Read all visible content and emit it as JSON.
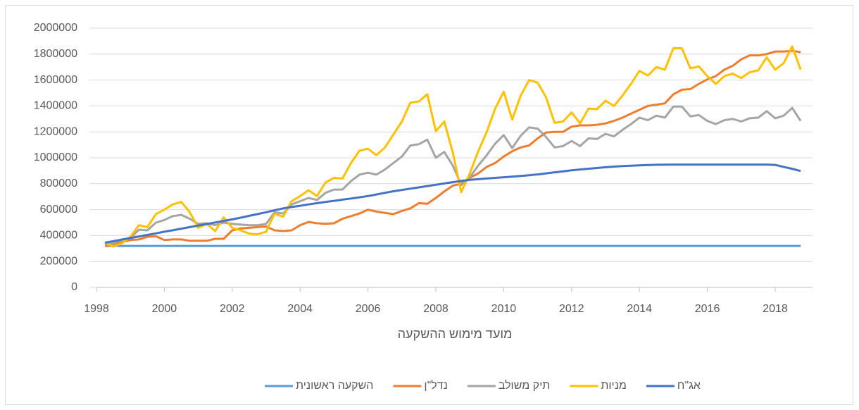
{
  "chart_data": {
    "type": "line",
    "x_label": "מועד מימוש ההשקעה",
    "x": [
      1998.25,
      1998.5,
      1998.75,
      1999,
      1999.25,
      1999.5,
      1999.75,
      2000,
      2000.25,
      2000.5,
      2000.75,
      2001,
      2001.25,
      2001.5,
      2001.75,
      2002,
      2002.25,
      2002.5,
      2002.75,
      2003,
      2003.25,
      2003.5,
      2003.75,
      2004,
      2004.25,
      2004.5,
      2004.75,
      2005,
      2005.25,
      2005.5,
      2005.75,
      2006,
      2006.25,
      2006.5,
      2006.75,
      2007,
      2007.25,
      2007.5,
      2007.75,
      2008,
      2008.25,
      2008.5,
      2008.75,
      2009,
      2009.25,
      2009.5,
      2009.75,
      2010,
      2010.25,
      2010.5,
      2010.75,
      2011,
      2011.25,
      2011.5,
      2011.75,
      2012,
      2012.25,
      2012.5,
      2012.75,
      2013,
      2013.25,
      2013.5,
      2013.75,
      2014,
      2014.25,
      2014.5,
      2014.75,
      2015,
      2015.25,
      2015.5,
      2015.75,
      2016,
      2016.25,
      2016.5,
      2016.75,
      2017,
      2017.25,
      2017.5,
      2017.75,
      2018,
      2018.25,
      2018.5,
      2018.75
    ],
    "series": [
      {
        "name": "השקעה ראשונית",
        "color": "#5b9bd5",
        "values": [
          320000,
          320000,
          320000,
          320000,
          320000,
          320000,
          320000,
          320000,
          320000,
          320000,
          320000,
          320000,
          320000,
          320000,
          320000,
          320000,
          320000,
          320000,
          320000,
          320000,
          320000,
          320000,
          320000,
          320000,
          320000,
          320000,
          320000,
          320000,
          320000,
          320000,
          320000,
          320000,
          320000,
          320000,
          320000,
          320000,
          320000,
          320000,
          320000,
          320000,
          320000,
          320000,
          320000,
          320000,
          320000,
          320000,
          320000,
          320000,
          320000,
          320000,
          320000,
          320000,
          320000,
          320000,
          320000,
          320000,
          320000,
          320000,
          320000,
          320000,
          320000,
          320000,
          320000,
          320000,
          320000,
          320000,
          320000,
          320000,
          320000,
          320000,
          320000,
          320000,
          320000,
          320000,
          320000,
          320000,
          320000,
          320000,
          320000,
          320000,
          320000,
          320000,
          320000
        ]
      },
      {
        "name": "נדל\"ן",
        "color": "#ed7d31",
        "values": [
          320000,
          330000,
          350000,
          365000,
          370000,
          390000,
          395000,
          365000,
          370000,
          370000,
          360000,
          360000,
          360000,
          375000,
          375000,
          440000,
          455000,
          460000,
          465000,
          470000,
          440000,
          435000,
          440000,
          480000,
          505000,
          495000,
          490000,
          495000,
          530000,
          550000,
          570000,
          600000,
          585000,
          575000,
          565000,
          590000,
          610000,
          650000,
          645000,
          690000,
          740000,
          785000,
          800000,
          845000,
          880000,
          930000,
          960000,
          1010000,
          1050000,
          1080000,
          1095000,
          1150000,
          1195000,
          1200000,
          1200000,
          1240000,
          1250000,
          1250000,
          1255000,
          1265000,
          1285000,
          1310000,
          1340000,
          1370000,
          1400000,
          1410000,
          1420000,
          1490000,
          1525000,
          1530000,
          1570000,
          1605000,
          1630000,
          1680000,
          1710000,
          1760000,
          1790000,
          1790000,
          1800000,
          1820000,
          1820000,
          1825000,
          1815000
        ]
      },
      {
        "name": "תיק משולב",
        "color": "#a5a5a5",
        "values": [
          330000,
          340000,
          370000,
          380000,
          445000,
          440000,
          500000,
          520000,
          550000,
          560000,
          530000,
          490000,
          495000,
          480000,
          500000,
          490000,
          485000,
          480000,
          480000,
          490000,
          580000,
          570000,
          640000,
          665000,
          690000,
          675000,
          730000,
          755000,
          755000,
          820000,
          870000,
          885000,
          870000,
          910000,
          960000,
          1010000,
          1095000,
          1105000,
          1140000,
          1000000,
          1045000,
          940000,
          790000,
          850000,
          940000,
          1020000,
          1110000,
          1175000,
          1075000,
          1170000,
          1235000,
          1225000,
          1160000,
          1080000,
          1090000,
          1130000,
          1090000,
          1150000,
          1145000,
          1185000,
          1165000,
          1215000,
          1260000,
          1310000,
          1290000,
          1325000,
          1310000,
          1395000,
          1395000,
          1320000,
          1330000,
          1285000,
          1260000,
          1290000,
          1300000,
          1280000,
          1305000,
          1310000,
          1360000,
          1305000,
          1325000,
          1385000,
          1285000
        ]
      },
      {
        "name": "מניות",
        "color": "#ffc000",
        "values": [
          345000,
          315000,
          340000,
          390000,
          480000,
          465000,
          565000,
          600000,
          640000,
          660000,
          580000,
          460000,
          490000,
          435000,
          540000,
          460000,
          440000,
          415000,
          410000,
          430000,
          570000,
          545000,
          665000,
          705000,
          750000,
          705000,
          810000,
          845000,
          840000,
          960000,
          1055000,
          1070000,
          1020000,
          1080000,
          1180000,
          1280000,
          1425000,
          1435000,
          1490000,
          1205000,
          1280000,
          1040000,
          735000,
          880000,
          1050000,
          1200000,
          1380000,
          1510000,
          1295000,
          1480000,
          1600000,
          1580000,
          1465000,
          1270000,
          1280000,
          1350000,
          1265000,
          1380000,
          1375000,
          1440000,
          1400000,
          1480000,
          1570000,
          1670000,
          1635000,
          1700000,
          1680000,
          1845000,
          1845000,
          1690000,
          1705000,
          1630000,
          1570000,
          1630000,
          1650000,
          1615000,
          1660000,
          1675000,
          1775000,
          1680000,
          1730000,
          1860000,
          1680000
        ]
      },
      {
        "name": "אג\"ח",
        "color": "#4472c4",
        "values": [
          345000,
          357000,
          369000,
          381000,
          393000,
          405000,
          417000,
          430000,
          441000,
          453000,
          465000,
          477000,
          489000,
          501000,
          513000,
          525000,
          538000,
          552000,
          566000,
          580000,
          595000,
          610000,
          620000,
          630000,
          640000,
          650000,
          660000,
          668000,
          677000,
          686000,
          695000,
          705000,
          717000,
          730000,
          742000,
          752000,
          762000,
          772000,
          782000,
          792000,
          802000,
          812000,
          822000,
          830000,
          835000,
          840000,
          845000,
          850000,
          855000,
          860000,
          865000,
          872000,
          880000,
          888000,
          895000,
          903000,
          910000,
          916000,
          921000,
          927000,
          932000,
          936000,
          939000,
          942000,
          944000,
          946000,
          947000,
          948000,
          948000,
          948000,
          948000,
          948000,
          948000,
          948000,
          948000,
          948000,
          948000,
          948000,
          948000,
          945000,
          930000,
          915000,
          898000
        ]
      }
    ],
    "xlim": [
      1998,
      2019.1
    ],
    "xticks": [
      1998,
      2000,
      2002,
      2004,
      2006,
      2008,
      2010,
      2012,
      2014,
      2016,
      2018
    ],
    "ylim": [
      0,
      2000000
    ],
    "yticks": [
      0,
      200000,
      400000,
      600000,
      800000,
      1000000,
      1200000,
      1400000,
      1600000,
      1800000,
      2000000
    ],
    "grid": true,
    "legend": "bottom"
  }
}
